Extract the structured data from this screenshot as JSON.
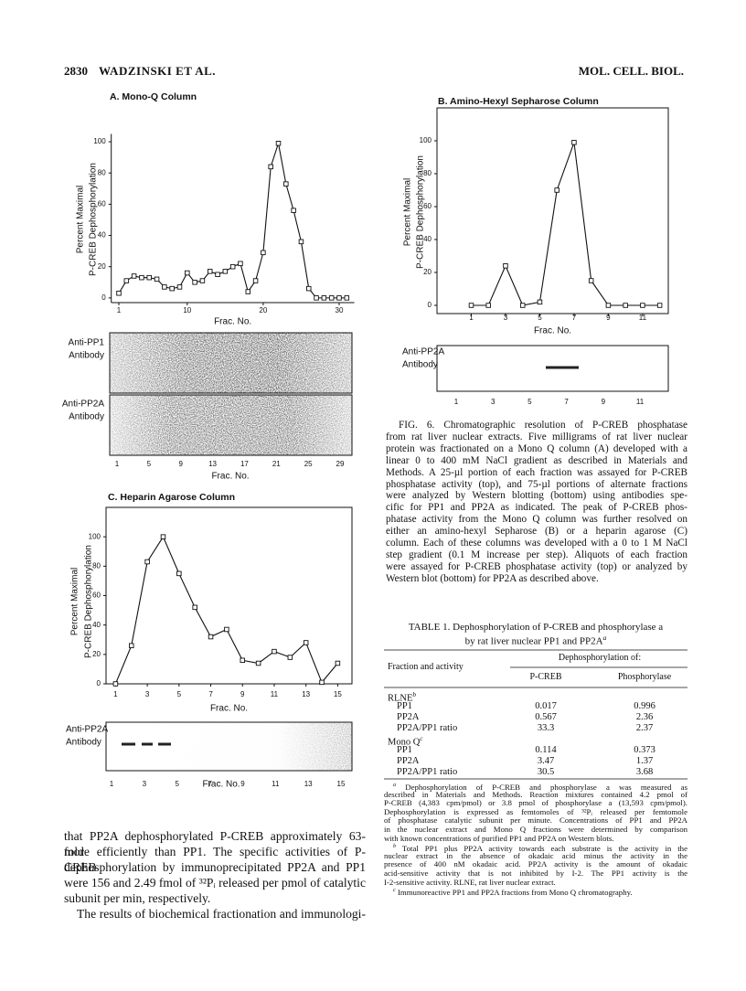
{
  "header": {
    "page": "2830",
    "authors": "WADZINSKI ET AL.",
    "journal": "MOL. CELL. BIOL."
  },
  "chart_data": [
    {
      "type": "line",
      "title": "A. Mono-Q Column",
      "ylabel": [
        "Percent Maximal",
        "P-CREB Dephosphorylation"
      ],
      "xlabel": "Frac. No.",
      "x": [
        1,
        2,
        3,
        4,
        5,
        6,
        7,
        8,
        9,
        10,
        11,
        12,
        13,
        14,
        15,
        16,
        17,
        18,
        19,
        20,
        21,
        22,
        23,
        24,
        25,
        26,
        27,
        28,
        29,
        30,
        31
      ],
      "values": [
        3,
        11,
        14,
        13,
        13,
        12,
        7,
        6,
        7,
        16,
        10,
        11,
        17,
        15,
        17,
        20,
        22,
        4,
        11,
        29,
        84,
        99,
        73,
        56,
        36,
        6,
        0,
        0,
        0,
        0,
        0
      ],
      "xlim": [
        0,
        32
      ],
      "ylim": [
        -3,
        105
      ],
      "xticks": [
        1,
        10,
        20,
        30
      ],
      "yticks": [
        0,
        20,
        40,
        60,
        80,
        100
      ],
      "frame": false,
      "color": "#111111"
    },
    {
      "type": "line",
      "title": "B. Amino-Hexyl Sepharose Column",
      "ylabel": [
        "Percent Maximal",
        "P-CREB Dephosphorylation"
      ],
      "xlabel": "Frac. No.",
      "x": [
        1,
        2,
        3,
        4,
        5,
        6,
        7,
        8,
        9,
        10,
        11,
        12
      ],
      "values": [
        0,
        0,
        24,
        0,
        2,
        70,
        99,
        15,
        0,
        0,
        0,
        0
      ],
      "xlim": [
        -1,
        12.5
      ],
      "ylim": [
        -5,
        120
      ],
      "xticks": [
        1,
        3,
        5,
        7,
        9,
        11
      ],
      "yticks": [
        0,
        20,
        40,
        60,
        80,
        100
      ],
      "frame": true,
      "color": "#111111"
    },
    {
      "type": "line",
      "title": "C. Heparin Agarose Column",
      "ylabel": [
        "Percent Maximal",
        "P-CREB Dephosphorylation"
      ],
      "xlabel": "Frac. No.",
      "x": [
        1,
        2,
        3,
        4,
        5,
        6,
        7,
        8,
        9,
        10,
        11,
        12,
        13,
        14,
        15
      ],
      "values": [
        0,
        26,
        83,
        100,
        75,
        52,
        32,
        37,
        16,
        14,
        22,
        18,
        28,
        1,
        14
      ],
      "xlim": [
        0.4,
        15.9
      ],
      "ylim": [
        0,
        120
      ],
      "xticks": [
        1,
        3,
        5,
        7,
        9,
        11,
        13,
        15
      ],
      "yticks": [
        0,
        20,
        40,
        60,
        80,
        100
      ],
      "frame": true,
      "color": "#111111"
    }
  ],
  "blots": [
    {
      "label": [
        "Anti-PP1",
        "Antibody"
      ]
    },
    {
      "label": [
        "Anti-PP2A",
        "Antibody"
      ],
      "lanes": [
        "1",
        "5",
        "9",
        "13",
        "17",
        "21",
        "25",
        "29"
      ],
      "xlabel": "Frac. No."
    },
    {
      "label": [
        "Anti-PP2A",
        "Antibody"
      ],
      "lanes": [
        "1",
        "3",
        "5",
        "7",
        "9",
        "11"
      ]
    },
    {
      "label": [
        "Anti-PP2A",
        "Antibody"
      ],
      "lanes": [
        "1",
        "3",
        "5",
        "7",
        "9",
        "11",
        "13",
        "15"
      ],
      "xlabel": "Frac. No."
    }
  ],
  "caption": [
    "FIG. 6. Chromatographic resolution of P-CREB phosphatase",
    "from rat liver nuclear extracts. Five milligrams of rat liver nuclear",
    "protein was fractionated on a Mono Q column (A) developed with a",
    "linear 0 to 400 mM NaCl gradient as described in Materials and",
    "Methods. A 25-µl portion of each fraction was assayed for P-CREB",
    "phosphatase activity (top), and 75-µl portions of alternate fractions",
    "were analyzed by Western blotting (bottom) using antibodies spe-",
    "cific for PP1 and PP2A as indicated. The peak of P-CREB phos-",
    "phatase activity from the Mono Q column was further resolved on",
    "either an amino-hexyl Sepharose (B) or a heparin agarose (C)",
    "column. Each of these columns was developed with a 0 to 1 M NaCl",
    "step gradient (0.1 M increase per step). Aliquots of each fraction",
    "were assayed for P-CREB phosphatase activity (top) or analyzed by",
    "Western blot (bottom) for PP2A as described above."
  ],
  "table": {
    "title": [
      "TABLE 1. Dephosphorylation of P-CREB and phosphorylase a",
      "by rat liver nuclear PP1 and PP2A"
    ],
    "title_note": "a",
    "header": {
      "first": "Fraction and activity",
      "group": "Dephosphorylation of:",
      "cols": [
        "P-CREB",
        "Phosphorylase"
      ]
    },
    "rows": [
      {
        "label": "RLNE",
        "note": "b"
      },
      {
        "label": "PP1",
        "cells": [
          "0.017",
          "0.996"
        ]
      },
      {
        "label": "PP2A",
        "cells": [
          "0.567",
          "2.36"
        ]
      },
      {
        "label": "PP2A/PP1 ratio",
        "cells": [
          "33.3",
          "2.37"
        ]
      },
      {
        "label": "Mono Q",
        "note": "c"
      },
      {
        "label": "PP1",
        "cells": [
          "0.114",
          "0.373"
        ]
      },
      {
        "label": "PP2A",
        "cells": [
          "3.47",
          "1.37"
        ]
      },
      {
        "label": "PP2A/PP1 ratio",
        "cells": [
          "30.5",
          "3.68"
        ]
      }
    ]
  },
  "footnotes": [
    {
      "marker": "a",
      "lines": [
        "Dephosphorylation of P-CREB and phosphorylase a was measured as",
        "described in Materials and Methods. Reaction mixtures contained 4.2 pmol of",
        "P-CREB (4,383 cpm/pmol) or 3.8 pmol of phosphorylase a (13,593 cpm/pmol).",
        "Dephosphorylation is expressed as femtomoles of ³²Pᵢ released per femtomole",
        "of phosphatase catalytic subunit per minute. Concentrations of PP1 and PP2A",
        "in the nuclear extract and Mono Q fractions were determined by comparison",
        "with known concentrations of purified PP1 and PP2A on Western blots."
      ]
    },
    {
      "marker": "b",
      "lines": [
        "Total PP1 plus PP2A activity towards each substrate is the activity in the",
        "nuclear extract in the absence of okadaic acid minus the activity in the",
        "presence of 400 nM okadaic acid. PP2A activity is the amount of okadaic",
        "acid-sensitive activity that is not inhibited by I-2. The PP1 activity is the",
        "I-2-sensitive activity. RLNE, rat liver nuclear extract."
      ]
    },
    {
      "marker": "c",
      "lines": [
        "Immunoreactive PP1 and PP2A fractions from Mono Q chromatography."
      ]
    }
  ],
  "body": [
    [
      "that PP2A dephosphorylated P-CREB approximately 63-fold",
      "more efficiently than PP1. The specific activities of P-CREB",
      "dephosphorylation by immunoprecipitated PP2A and PP1",
      "were 156 and 2.49 fmol of ³²Pᵢ released per pmol of catalytic",
      "subunit per min, respectively."
    ],
    [
      "The results of biochemical fractionation and immunologi-"
    ]
  ]
}
